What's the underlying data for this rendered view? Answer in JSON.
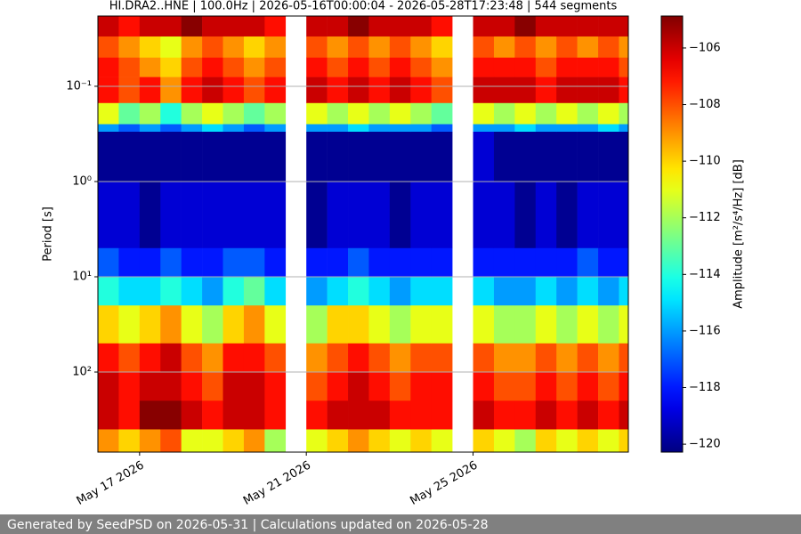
{
  "chart_data": {
    "type": "heatmap",
    "title": "HI.DRA2..HNE | 100.0Hz | 2026-05-16T00:00:04 - 2026-05-28T17:23:48 | 544 segments",
    "y_label": "Period [s]",
    "colorbar_label": "Amplitude [m²/s⁴/Hz] [dB]",
    "x": [
      "2026-05-16T00:00",
      "2026-05-16T12:00",
      "2026-05-17T00:00",
      "2026-05-17T12:00",
      "2026-05-18T00:00",
      "2026-05-18T12:00",
      "2026-05-19T00:00",
      "2026-05-19T12:00",
      "2026-05-20T00:00",
      "2026-05-20T12:00",
      "2026-05-21T00:00",
      "2026-05-21T12:00",
      "2026-05-22T00:00",
      "2026-05-22T12:00",
      "2026-05-23T00:00",
      "2026-05-23T12:00",
      "2026-05-24T00:00",
      "2026-05-24T12:00",
      "2026-05-25T00:00",
      "2026-05-25T12:00",
      "2026-05-26T00:00",
      "2026-05-26T12:00",
      "2026-05-27T00:00",
      "2026-05-27T12:00",
      "2026-05-28T00:00",
      "2026-05-28T12:00"
    ],
    "xlim": [
      "2026-05-16T00:00:04",
      "2026-05-28T17:23:48"
    ],
    "xticks": [
      {
        "value": "2026-05-17T00:00",
        "label": "May 17 2026"
      },
      {
        "value": "2026-05-21T00:00",
        "label": "May 21 2026"
      },
      {
        "value": "2026-05-25T00:00",
        "label": "May 25 2026"
      }
    ],
    "ybins": [
      0.0183,
      0.03,
      0.05,
      0.08,
      0.15,
      0.25,
      0.3,
      1,
      5,
      10,
      20,
      50,
      100,
      200,
      400,
      693
    ],
    "ylim": [
      0.0183,
      693
    ],
    "y_log": true,
    "y_inverted": true,
    "yticks": [
      {
        "value": 0.1,
        "label": "10⁻¹"
      },
      {
        "value": 1,
        "label": "10⁰"
      },
      {
        "value": 10,
        "label": "10¹"
      },
      {
        "value": 100,
        "label": "10²"
      }
    ],
    "grid": true,
    "colormap": "jet",
    "clim": [
      -120.28,
      -104.87
    ],
    "cticks": [
      {
        "value": -106,
        "label": "−106"
      },
      {
        "value": -108,
        "label": "−108"
      },
      {
        "value": -110,
        "label": "−110"
      },
      {
        "value": -112,
        "label": "−112"
      },
      {
        "value": -114,
        "label": "−114"
      },
      {
        "value": -116,
        "label": "−116"
      },
      {
        "value": -118,
        "label": "−118"
      },
      {
        "value": -120,
        "label": "−120"
      }
    ],
    "values": [
      [
        -106,
        -108,
        -107,
        -107,
        -111,
        -116,
        -120,
        -119,
        -117,
        -114,
        -110,
        -107,
        -106,
        -106,
        -109
      ],
      [
        -107,
        -109,
        -108,
        -108,
        -113,
        -117,
        -120,
        -119,
        -118,
        -115,
        -111,
        -108,
        -107,
        -107,
        -110
      ],
      [
        -106,
        -110,
        -109,
        -107,
        -112,
        -116,
        -120,
        -120,
        -118,
        -115,
        -110,
        -107,
        -106,
        -105,
        -109
      ],
      [
        -106,
        -111,
        -110,
        -109,
        -114,
        -117,
        -120,
        -119,
        -117,
        -114,
        -109,
        -106,
        -106,
        -105,
        -108
      ],
      [
        -105,
        -109,
        -108,
        -107,
        -112,
        -116,
        -120,
        -119,
        -118,
        -115,
        -111,
        -108,
        -107,
        -106,
        -111
      ],
      [
        -106,
        -108,
        -107,
        -106,
        -111,
        -115,
        -120,
        -119,
        -118,
        -116,
        -112,
        -109,
        -108,
        -107,
        -111
      ],
      [
        -106,
        -109,
        -108,
        -107,
        -112,
        -116,
        -120,
        -119,
        -117,
        -114,
        -110,
        -107,
        -106,
        -106,
        -110
      ],
      [
        -106,
        -110,
        -109,
        -108,
        -113,
        -117,
        -120,
        -119,
        -117,
        -113,
        -109,
        -107,
        -106,
        -106,
        -109
      ],
      [
        -107,
        -109,
        -108,
        -107,
        -112,
        -116,
        -120,
        -119,
        -118,
        -115,
        -111,
        -108,
        -107,
        -107,
        -112
      ],
      null,
      [
        -106,
        -108,
        -107,
        -106,
        -111,
        -116,
        -120,
        -120,
        -118,
        -116,
        -112,
        -109,
        -108,
        -107,
        -111
      ],
      [
        -106,
        -109,
        -108,
        -107,
        -112,
        -116,
        -120,
        -119,
        -118,
        -115,
        -110,
        -108,
        -107,
        -106,
        -110
      ],
      [
        -105,
        -108,
        -107,
        -106,
        -111,
        -115,
        -120,
        -119,
        -117,
        -114,
        -110,
        -107,
        -106,
        -106,
        -109
      ],
      [
        -106,
        -109,
        -108,
        -107,
        -112,
        -116,
        -120,
        -119,
        -118,
        -115,
        -111,
        -108,
        -107,
        -106,
        -110
      ],
      [
        -106,
        -108,
        -107,
        -106,
        -111,
        -116,
        -120,
        -120,
        -118,
        -116,
        -112,
        -109,
        -108,
        -107,
        -111
      ],
      [
        -106,
        -109,
        -108,
        -107,
        -112,
        -116,
        -120,
        -119,
        -118,
        -115,
        -111,
        -108,
        -107,
        -107,
        -110
      ],
      [
        -107,
        -110,
        -109,
        -108,
        -113,
        -117,
        -120,
        -119,
        -118,
        -115,
        -111,
        -108,
        -107,
        -107,
        -111
      ],
      null,
      [
        -106,
        -108,
        -107,
        -106,
        -111,
        -116,
        -119,
        -119,
        -118,
        -115,
        -111,
        -108,
        -107,
        -106,
        -110
      ],
      [
        -106,
        -109,
        -107,
        -106,
        -112,
        -116,
        -120,
        -119,
        -118,
        -116,
        -112,
        -109,
        -108,
        -107,
        -111
      ],
      [
        -105,
        -108,
        -107,
        -106,
        -111,
        -115,
        -120,
        -120,
        -118,
        -116,
        -112,
        -109,
        -108,
        -107,
        -112
      ],
      [
        -106,
        -109,
        -108,
        -107,
        -112,
        -116,
        -120,
        -119,
        -118,
        -115,
        -111,
        -108,
        -107,
        -106,
        -110
      ],
      [
        -106,
        -108,
        -107,
        -106,
        -111,
        -116,
        -120,
        -120,
        -118,
        -116,
        -112,
        -109,
        -108,
        -107,
        -111
      ],
      [
        -106,
        -109,
        -107,
        -106,
        -112,
        -116,
        -120,
        -119,
        -117,
        -115,
        -111,
        -108,
        -107,
        -106,
        -110
      ],
      [
        -106,
        -108,
        -107,
        -106,
        -111,
        -115,
        -120,
        -119,
        -118,
        -116,
        -112,
        -109,
        -108,
        -107,
        -111
      ],
      [
        -106,
        -109,
        -108,
        -107,
        -112,
        -116,
        -120,
        -119,
        -118,
        -115,
        -111,
        -108,
        -107,
        -106,
        -110
      ]
    ]
  },
  "footer": "Generated by SeedPSD on 2026-05-31 | Calculations updated on 2026-05-28"
}
